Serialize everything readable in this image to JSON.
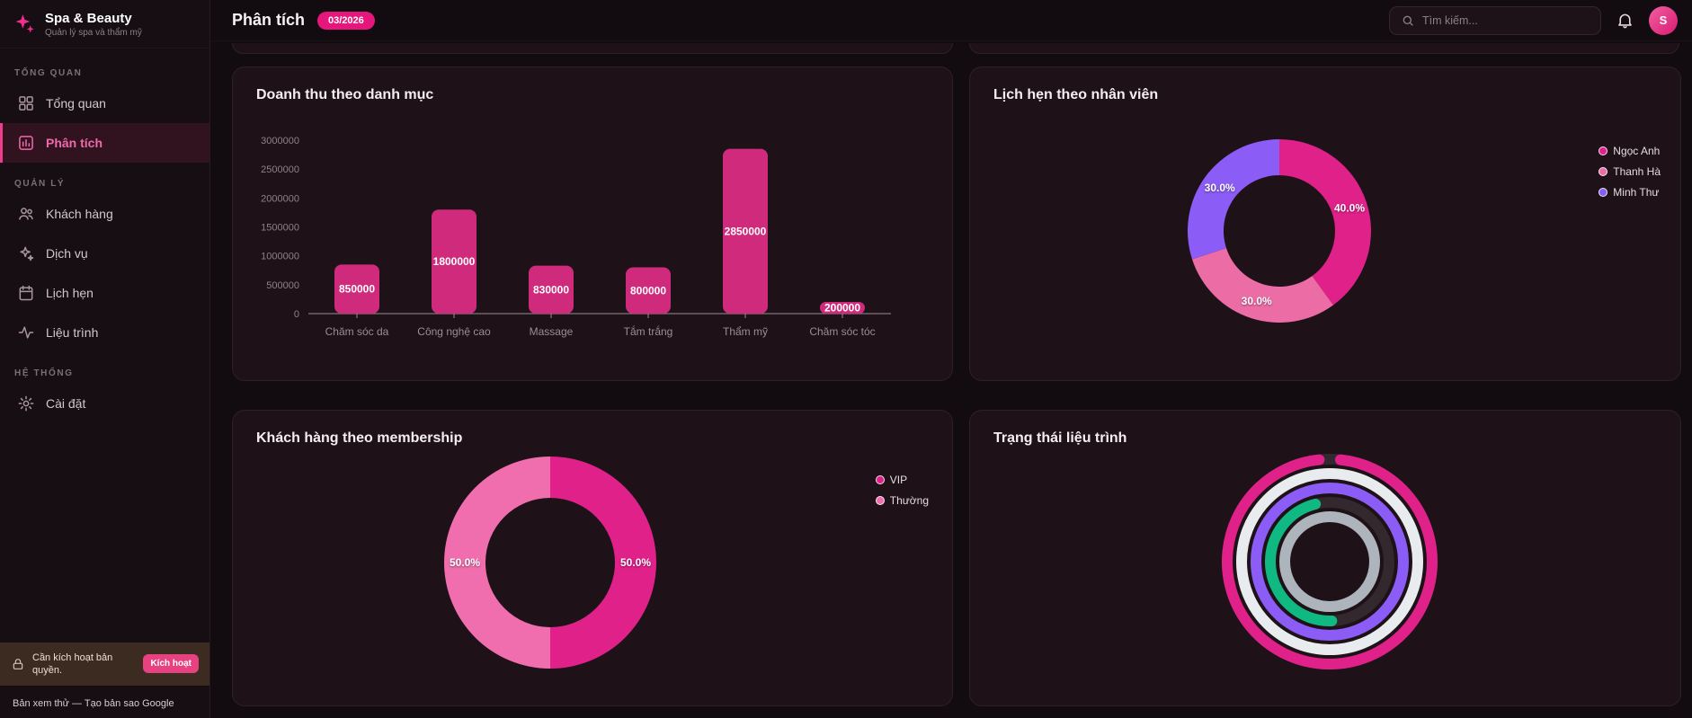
{
  "brand": {
    "name": "Spa & Beauty",
    "tagline": "Quản lý spa và thẩm mỹ"
  },
  "header": {
    "title": "Phân tích",
    "badge": "03/2026",
    "search_placeholder": "Tìm kiếm...",
    "avatar_initial": "S"
  },
  "sidebar": {
    "sections": [
      {
        "label": "TỔNG QUAN",
        "items": [
          {
            "label": "Tổng quan",
            "icon": "grid-icon",
            "active": false
          },
          {
            "label": "Phân tích",
            "icon": "bar-chart-icon",
            "active": true
          }
        ]
      },
      {
        "label": "QUẢN LÝ",
        "items": [
          {
            "label": "Khách hàng",
            "icon": "users-icon",
            "active": false
          },
          {
            "label": "Dịch vụ",
            "icon": "sparkles-icon",
            "active": false
          },
          {
            "label": "Lịch hẹn",
            "icon": "calendar-icon",
            "active": false
          },
          {
            "label": "Liệu trình",
            "icon": "activity-icon",
            "active": false
          }
        ]
      },
      {
        "label": "HỆ THỐNG",
        "items": [
          {
            "label": "Cài đặt",
            "icon": "gear-icon",
            "active": false
          }
        ]
      }
    ],
    "license": {
      "text": "Cần kích hoạt bản quyền.",
      "button_label": "Kích hoạt"
    },
    "preview_note": "Bản xem thử — Tạo bản sao Google"
  },
  "chart_data": [
    {
      "type": "bar",
      "title": "Doanh thu theo danh mục",
      "categories": [
        "Chăm sóc da",
        "Công nghệ cao",
        "Massage",
        "Tắm trắng",
        "Thẩm mỹ",
        "Chăm sóc tóc"
      ],
      "values": [
        850000,
        1800000,
        830000,
        800000,
        2850000,
        200000
      ],
      "ylim": [
        0,
        3000000
      ],
      "ytick_step": 500000,
      "bar_color": "#d02a7c",
      "grid": false,
      "xlabel": "",
      "ylabel": ""
    },
    {
      "type": "pie",
      "title": "Lịch hẹn theo nhân viên",
      "donut": true,
      "labels": [
        "Ngọc Anh",
        "Thanh Hà",
        "Minh Thư"
      ],
      "values": [
        40,
        30,
        30
      ],
      "percent_labels": [
        "40.0%",
        "30.0%",
        "30.0%"
      ],
      "colors": [
        "#e0218a",
        "#ec6ca6",
        "#8b5cf6"
      ],
      "legend_position": "right"
    },
    {
      "type": "pie",
      "title": "Khách hàng theo membership",
      "donut": true,
      "labels": [
        "VIP",
        "Thường"
      ],
      "values": [
        50,
        50
      ],
      "percent_labels": [
        "50.0%",
        "50.0%"
      ],
      "colors": [
        "#e0218a",
        "#f06eae"
      ],
      "legend_position": "right"
    },
    {
      "type": "radial",
      "title": "Trạng thái liệu trình",
      "rings": [
        {
          "color": "#e0218a",
          "start_deg": 6,
          "sweep_deg": 348
        },
        {
          "color": "#e9ecef",
          "start_deg": 0,
          "sweep_deg": 360
        },
        {
          "color": "#8b5cf6",
          "start_deg": 0,
          "sweep_deg": 360
        },
        {
          "color": "#10b981",
          "start_deg": 178,
          "sweep_deg": 168
        },
        {
          "color": "#aeb4bb",
          "start_deg": 0,
          "sweep_deg": 360
        }
      ]
    }
  ]
}
